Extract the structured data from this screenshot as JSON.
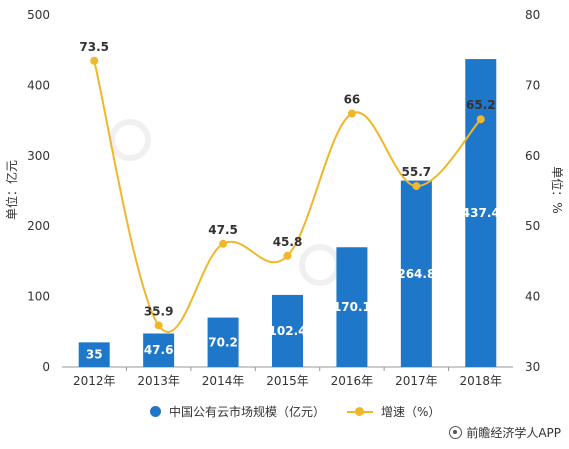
{
  "chart_data": {
    "type": "bar",
    "categories": [
      "2012年",
      "2013年",
      "2014年",
      "2015年",
      "2016年",
      "2017年",
      "2018年"
    ],
    "series": [
      {
        "name": "中国公有云市场规模（亿元）",
        "type": "bar",
        "axis": "left",
        "values": [
          35,
          47.6,
          70.2,
          102.4,
          170.1,
          264.8,
          437.4
        ],
        "labels": [
          "35",
          "47.6",
          "70.2",
          "102.4",
          "170.1",
          "264.8",
          "437.4"
        ],
        "color": "#1f77c9"
      },
      {
        "name": "增速（%）",
        "type": "line",
        "axis": "right",
        "values": [
          73.5,
          35.9,
          47.5,
          45.8,
          66,
          55.7,
          65.2
        ],
        "labels": [
          "73.5",
          "35.9",
          "47.5",
          "45.8",
          "66",
          "55.7",
          "65.2"
        ],
        "color": "#f0b72c"
      }
    ],
    "ylabel_left": "单位：亿元",
    "ylabel_right": "单位：%",
    "ylim_left": [
      0,
      500
    ],
    "ylim_right": [
      30,
      80
    ],
    "yticks_left": [
      "0",
      "100",
      "200",
      "300",
      "400",
      "500"
    ],
    "yticks_right": [
      "30",
      "40",
      "50",
      "60",
      "70",
      "80"
    ],
    "grid": false,
    "legend_position": "bottom"
  },
  "source": "前瞻经济学人APP",
  "source_icon": "source-icon"
}
